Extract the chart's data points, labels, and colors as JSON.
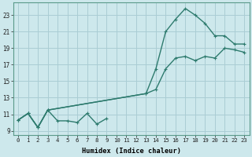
{
  "xlabel": "Humidex (Indice chaleur)",
  "background_color": "#cde8ec",
  "grid_color": "#aacdd4",
  "line_color": "#2e7b6e",
  "xlim": [
    -0.5,
    23.5
  ],
  "ylim": [
    8.5,
    24.5
  ],
  "xticks": [
    0,
    1,
    2,
    3,
    4,
    5,
    6,
    7,
    8,
    9,
    10,
    11,
    12,
    13,
    14,
    15,
    16,
    17,
    18,
    19,
    20,
    21,
    22,
    23
  ],
  "yticks": [
    9,
    11,
    13,
    15,
    17,
    19,
    21,
    23
  ],
  "curve1_x": [
    0,
    1,
    2,
    3,
    4,
    5,
    6,
    7,
    8,
    9
  ],
  "curve1_y": [
    10.3,
    11.1,
    9.4,
    11.5,
    10.2,
    10.2,
    10.0,
    11.1,
    9.8,
    10.5
  ],
  "curve2_x": [
    0,
    1,
    2,
    3,
    13,
    14,
    15,
    16,
    17,
    18,
    19,
    20,
    21,
    22,
    23
  ],
  "curve2_y": [
    10.3,
    11.1,
    9.4,
    11.5,
    13.5,
    14.0,
    16.5,
    17.8,
    18.0,
    17.5,
    18.0,
    17.8,
    19.0,
    18.8,
    18.5
  ],
  "curve3_x": [
    0,
    1,
    2,
    3,
    13,
    14,
    15,
    16,
    17,
    18,
    19,
    20,
    21,
    22,
    23
  ],
  "curve3_y": [
    10.3,
    11.1,
    9.4,
    11.5,
    13.5,
    16.5,
    21.0,
    22.5,
    23.8,
    23.0,
    22.0,
    20.5,
    20.5,
    19.5,
    19.5
  ]
}
